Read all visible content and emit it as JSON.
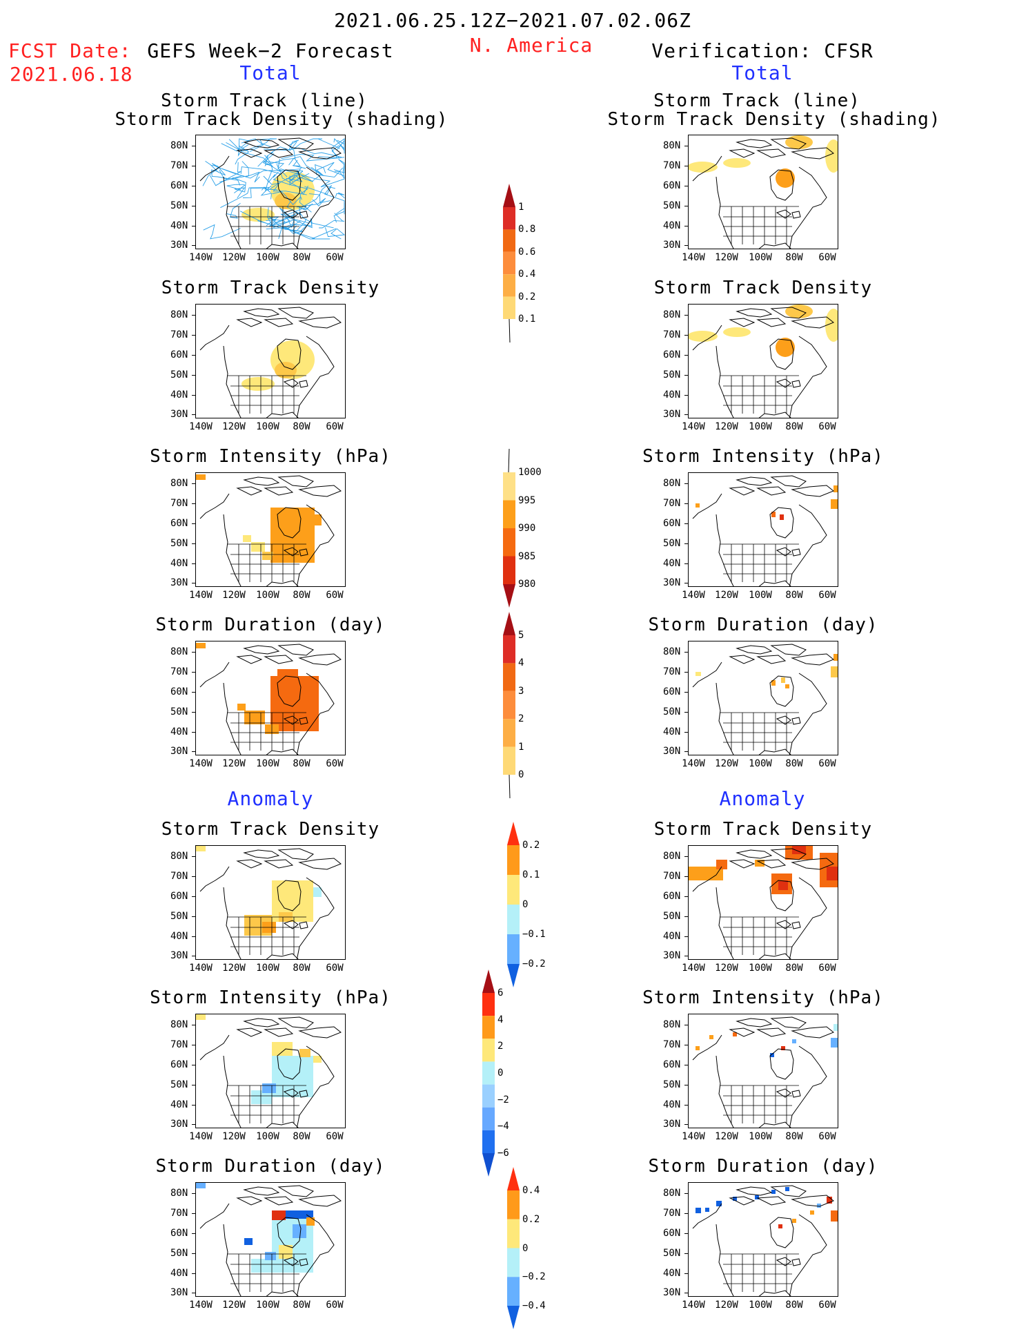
{
  "header": {
    "date_range": "2021.06.25.12Z−2021.07.02.06Z",
    "region": "N. America",
    "fcst_label": "FCST Date:",
    "fcst_date": "2021.06.18",
    "left_title": "GEFS Week−2 Forecast",
    "right_title": "Verification: CFSR",
    "total_label": "Total",
    "anomaly_label": "Anomaly"
  },
  "panel_titles": {
    "track1": "Storm Track (line)",
    "track2": "Storm Track Density (shading)",
    "density": "Storm Track Density",
    "intensity": "Storm Intensity (hPa)",
    "duration": "Storm Duration (day)"
  },
  "map_axes": {
    "lat_labels": [
      "80N",
      "70N",
      "60N",
      "50N",
      "40N",
      "30N"
    ],
    "lon_labels": [
      "140W",
      "120W",
      "100W",
      "80W",
      "60W"
    ]
  },
  "colorbars": [
    {
      "id": "total-density",
      "labels": [
        "1",
        "0.8",
        "0.6",
        "0.4",
        "0.2",
        "0.1"
      ],
      "colors": [
        "#a50f15",
        "#de2d26",
        "#f16913",
        "#fd8d3c",
        "#fdae45",
        "#fed976",
        "#ffffb2"
      ]
    },
    {
      "id": "total-intensity",
      "labels": [
        "1000",
        "995",
        "990",
        "985",
        "980"
      ],
      "colors": [
        "#ffffb2",
        "#fee087",
        "#fd9f1a",
        "#f56a10",
        "#e03010",
        "#a50f15"
      ]
    },
    {
      "id": "total-duration",
      "labels": [
        "5",
        "4",
        "3",
        "2",
        "1",
        "0"
      ],
      "colors": [
        "#a50f15",
        "#de2d26",
        "#f16913",
        "#fd8d3c",
        "#fdae45",
        "#fed976",
        "#ffffb2"
      ]
    },
    {
      "id": "anom-density",
      "labels": [
        "0.2",
        "0.1",
        "0",
        "−0.1",
        "−0.2"
      ],
      "colors": [
        "#ff3010",
        "#ff9a1a",
        "#fee87a",
        "#b4f0f8",
        "#66b0ff",
        "#1060e0"
      ]
    },
    {
      "id": "anom-intensity",
      "labels": [
        "6",
        "4",
        "2",
        "0",
        "−2",
        "−4",
        "−6"
      ],
      "colors": [
        "#a50f15",
        "#ff3010",
        "#ff9a1a",
        "#fee87a",
        "#b4f0f8",
        "#9ad0ff",
        "#66a8ff",
        "#2070f0",
        "#1050d0"
      ]
    },
    {
      "id": "anom-duration",
      "labels": [
        "0.4",
        "0.2",
        "0",
        "−0.2",
        "−0.4"
      ],
      "colors": [
        "#ff3010",
        "#ff9a1a",
        "#fee87a",
        "#b4f0f8",
        "#66b0ff",
        "#1060e0"
      ]
    }
  ]
}
